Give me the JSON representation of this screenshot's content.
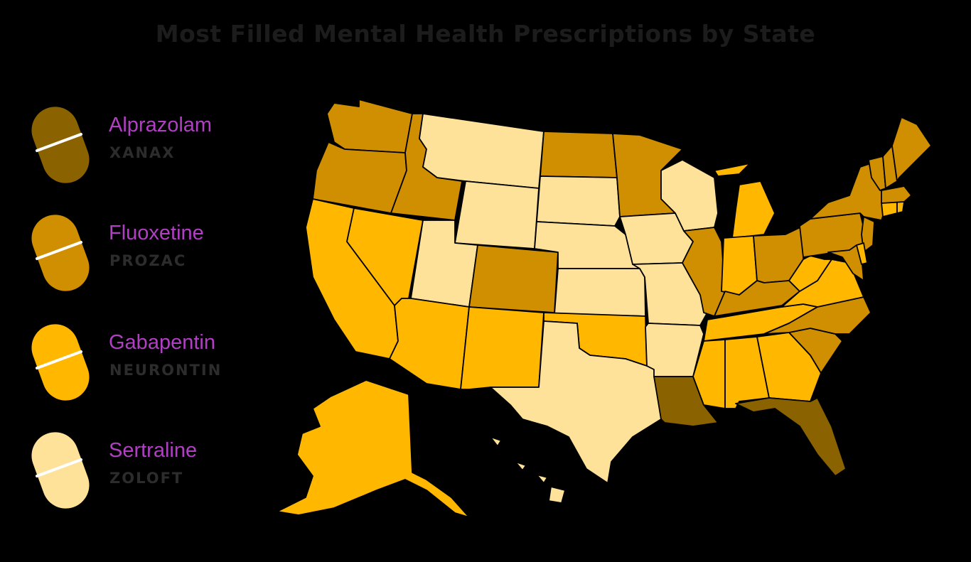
{
  "title": "Most Filled Mental Health Prescriptions by State",
  "colors": {
    "Alprazolam": "#8a6300",
    "Fluoxetine": "#cf8f00",
    "Gabapentin": "#ffb700",
    "Sertraline": "#ffe29a",
    "background": "#000000",
    "drug_text": "#b13fc4"
  },
  "legend": [
    {
      "drug": "Alprazolam",
      "brand": "XANAX",
      "color": "#8a6300",
      "icon": "pill-icon"
    },
    {
      "drug": "Fluoxetine",
      "brand": "PROZAC",
      "color": "#cf8f00",
      "icon": "pill-icon"
    },
    {
      "drug": "Gabapentin",
      "brand": "NEURONTIN",
      "color": "#ffb700",
      "icon": "pill-icon"
    },
    {
      "drug": "Sertraline",
      "brand": "ZOLOFT",
      "color": "#ffe29a",
      "icon": "pill-icon"
    }
  ],
  "states": {
    "WA": "Fluoxetine",
    "OR": "Fluoxetine",
    "ID": "Fluoxetine",
    "ND": "Fluoxetine",
    "MN": "Fluoxetine",
    "CO": "Fluoxetine",
    "IL": "Fluoxetine",
    "OH": "Fluoxetine",
    "PA": "Fluoxetine",
    "NY": "Fluoxetine",
    "KY": "Fluoxetine",
    "NC": "Fluoxetine",
    "SC": "Fluoxetine",
    "VT": "Fluoxetine",
    "NH": "Fluoxetine",
    "ME": "Fluoxetine",
    "MA": "Fluoxetine",
    "NJ": "Fluoxetine",
    "MD": "Fluoxetine",
    "CA": "Gabapentin",
    "NV": "Gabapentin",
    "AZ": "Gabapentin",
    "NM": "Gabapentin",
    "OK": "Gabapentin",
    "MI": "Gabapentin",
    "IN": "Gabapentin",
    "WV": "Gabapentin",
    "VA": "Gabapentin",
    "TN": "Gabapentin",
    "MS": "Gabapentin",
    "AL": "Gabapentin",
    "GA": "Gabapentin",
    "AK": "Gabapentin",
    "CT": "Gabapentin",
    "RI": "Gabapentin",
    "DE": "Gabapentin",
    "MT": "Sertraline",
    "WY": "Sertraline",
    "UT": "Sertraline",
    "SD": "Sertraline",
    "NE": "Sertraline",
    "KS": "Sertraline",
    "TX": "Sertraline",
    "IA": "Sertraline",
    "MO": "Sertraline",
    "AR": "Sertraline",
    "WI": "Sertraline",
    "HI": "Sertraline",
    "LA": "Alprazolam",
    "FL": "Alprazolam"
  }
}
